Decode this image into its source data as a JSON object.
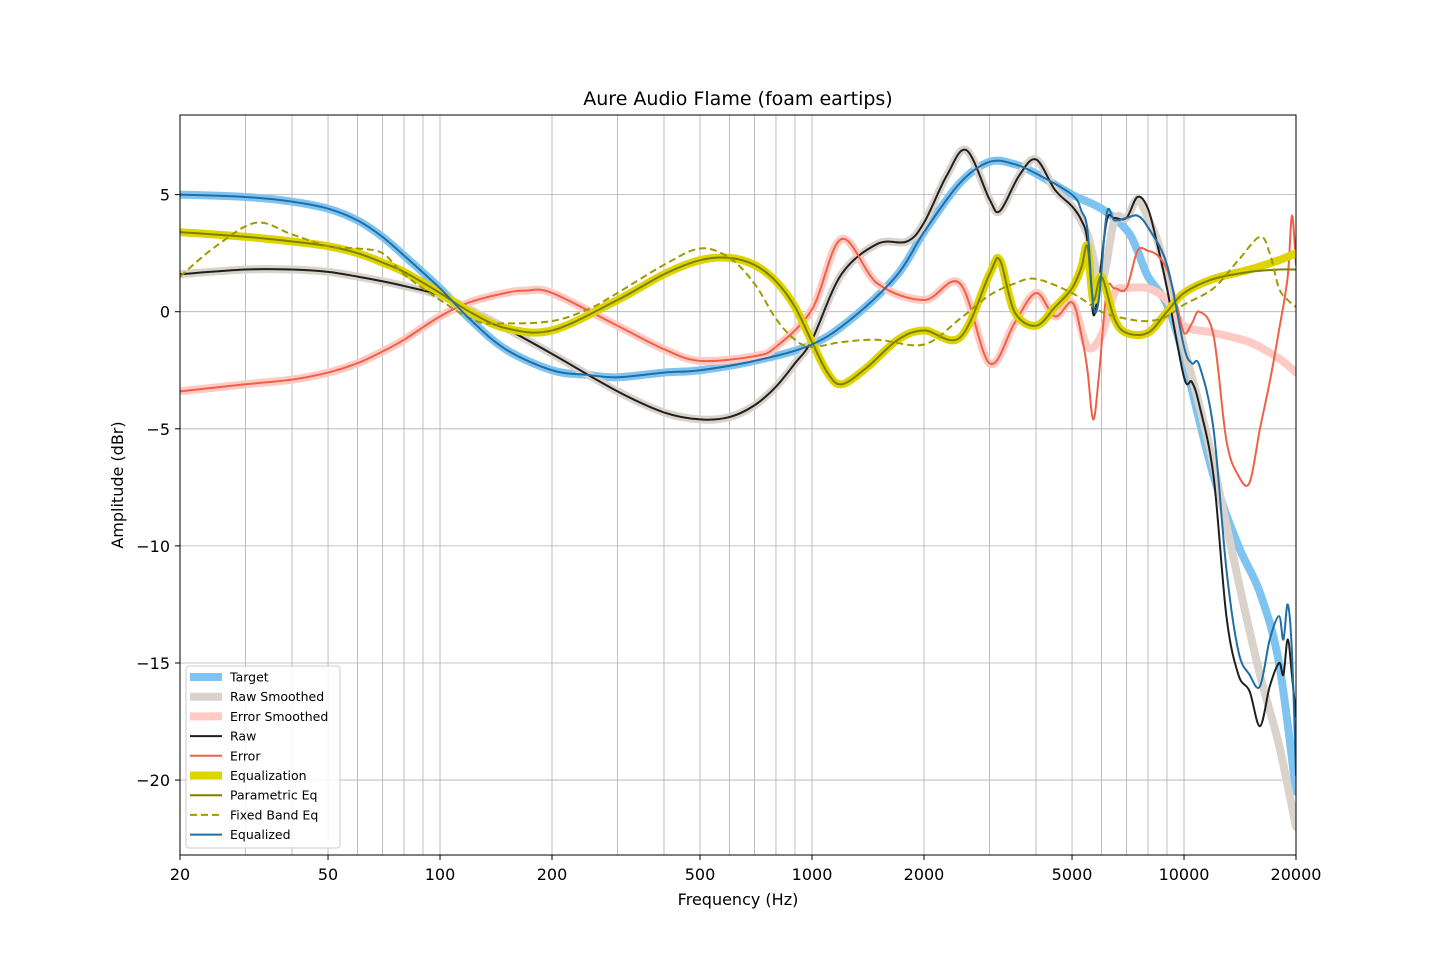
{
  "chart_data": {
    "type": "line",
    "title": "Aure Audio Flame (foam eartips)",
    "xlabel": "Frequency (Hz)",
    "ylabel": "Amplitude (dBr)",
    "xscale": "log",
    "xlim": [
      20,
      20000
    ],
    "ylim": [
      -23.2,
      8.4
    ],
    "grid": true,
    "legend_position": "lower-left",
    "x_ticks": [
      {
        "value": 20,
        "label": "20"
      },
      {
        "value": 50,
        "label": "50"
      },
      {
        "value": 100,
        "label": "100"
      },
      {
        "value": 200,
        "label": "200"
      },
      {
        "value": 500,
        "label": "500"
      },
      {
        "value": 1000,
        "label": "1000"
      },
      {
        "value": 2000,
        "label": "2000"
      },
      {
        "value": 5000,
        "label": "5000"
      },
      {
        "value": 10000,
        "label": "10000"
      },
      {
        "value": 20000,
        "label": "20000"
      }
    ],
    "y_ticks": [
      {
        "value": 5,
        "label": "5"
      },
      {
        "value": 0,
        "label": "0"
      },
      {
        "value": -5,
        "label": "−5"
      },
      {
        "value": -10,
        "label": "−10"
      },
      {
        "value": -15,
        "label": "−15"
      },
      {
        "value": -20,
        "label": "−20"
      }
    ],
    "series": [
      {
        "name": "Target",
        "color": "#7fc4f0",
        "style": "solid",
        "weight": "thick",
        "x": [
          20,
          30,
          40,
          50,
          60,
          70,
          80,
          100,
          120,
          150,
          200,
          250,
          300,
          400,
          500,
          700,
          1000,
          1300,
          1700,
          2000,
          2500,
          3000,
          3500,
          4000,
          5000,
          6000,
          7000,
          7500,
          8000,
          9000,
          10000,
          12000,
          14000,
          16000,
          18000,
          20000
        ],
        "y": [
          5.0,
          4.9,
          4.7,
          4.4,
          3.9,
          3.2,
          2.4,
          1.0,
          -0.3,
          -1.6,
          -2.5,
          -2.7,
          -2.8,
          -2.6,
          -2.5,
          -2.1,
          -1.4,
          -0.2,
          1.6,
          3.4,
          5.5,
          6.4,
          6.3,
          5.9,
          5.0,
          4.4,
          3.5,
          2.6,
          1.5,
          0.3,
          -2.0,
          -7.0,
          -10.0,
          -12.0,
          -15.0,
          -20.5
        ]
      },
      {
        "name": "Raw Smoothed",
        "color": "#d9d3cc",
        "style": "solid",
        "weight": "thick",
        "x": [
          20,
          30,
          40,
          50,
          60,
          70,
          80,
          100,
          120,
          150,
          200,
          300,
          400,
          500,
          600,
          700,
          800,
          900,
          1000,
          1200,
          1500,
          1800,
          2000,
          2300,
          2600,
          3000,
          3200,
          3600,
          4000,
          4500,
          5000,
          5500,
          6000,
          6500,
          7000,
          7500,
          8000,
          8500,
          9000,
          10000,
          11000,
          12000,
          14000,
          16000,
          18000,
          20000
        ],
        "y": [
          1.6,
          1.8,
          1.8,
          1.7,
          1.5,
          1.3,
          1.1,
          0.7,
          0.1,
          -0.7,
          -1.8,
          -3.4,
          -4.3,
          -4.6,
          -4.5,
          -4.0,
          -3.2,
          -2.2,
          -1.2,
          1.6,
          2.9,
          3.0,
          3.8,
          5.8,
          6.9,
          4.8,
          4.3,
          5.8,
          6.5,
          5.2,
          4.5,
          3.3,
          1.3,
          3.9,
          4.0,
          4.8,
          4.0,
          3.0,
          1.5,
          -1.5,
          -4.0,
          -6.5,
          -11.5,
          -15.5,
          -18.5,
          -22.0
        ]
      },
      {
        "name": "Error Smoothed",
        "color": "#ffcac3",
        "style": "solid",
        "weight": "thick",
        "x": [
          20,
          30,
          40,
          50,
          60,
          70,
          80,
          100,
          120,
          150,
          170,
          200,
          300,
          400,
          500,
          700,
          800,
          1000,
          1200,
          1500,
          2000,
          2500,
          3000,
          3500,
          4000,
          4500,
          5000,
          5500,
          6000,
          6500,
          7000,
          8000,
          9000,
          10000,
          12000,
          15000,
          18000,
          20000
        ],
        "y": [
          -3.4,
          -3.1,
          -2.9,
          -2.6,
          -2.2,
          -1.7,
          -1.2,
          -0.2,
          0.4,
          0.8,
          0.9,
          0.8,
          -0.6,
          -1.6,
          -2.1,
          -1.9,
          -1.5,
          0.1,
          3.1,
          1.2,
          0.5,
          1.2,
          -2.2,
          -0.5,
          0.8,
          -0.2,
          0.4,
          -1.5,
          -1.0,
          0.8,
          1.0,
          1.0,
          0.5,
          -0.6,
          -0.9,
          -1.3,
          -2.0,
          -2.6
        ]
      },
      {
        "name": "Raw",
        "color": "#1f1f1f",
        "style": "solid",
        "weight": "normal",
        "x": [
          20,
          30,
          40,
          50,
          60,
          70,
          80,
          100,
          120,
          150,
          200,
          300,
          400,
          500,
          600,
          700,
          800,
          900,
          1000,
          1200,
          1500,
          1800,
          2000,
          2300,
          2600,
          3000,
          3200,
          3600,
          4000,
          4500,
          5000,
          5300,
          5500,
          5700,
          5900,
          6200,
          6500,
          7000,
          7500,
          8000,
          8500,
          9000,
          10000,
          10500,
          11000,
          12000,
          13000,
          14000,
          15000,
          16000,
          17000,
          18000,
          18500,
          19000,
          19500,
          20000
        ],
        "y": [
          1.6,
          1.8,
          1.8,
          1.7,
          1.5,
          1.3,
          1.1,
          0.7,
          0.1,
          -0.7,
          -1.8,
          -3.4,
          -4.3,
          -4.6,
          -4.5,
          -4.0,
          -3.2,
          -2.2,
          -1.2,
          1.6,
          2.9,
          3.0,
          3.8,
          5.8,
          6.9,
          4.8,
          4.3,
          5.8,
          6.5,
          5.2,
          4.5,
          3.9,
          3.0,
          -0.1,
          1.2,
          3.9,
          4.0,
          4.0,
          4.9,
          4.4,
          2.8,
          1.0,
          -2.8,
          -3.0,
          -4.0,
          -7.0,
          -13.0,
          -15.5,
          -16.2,
          -17.7,
          -16.0,
          -15.0,
          -15.5,
          -14.0,
          -15.5,
          -17.3
        ]
      },
      {
        "name": "Error",
        "color": "#f06048",
        "style": "solid",
        "weight": "normal",
        "x": [
          20,
          30,
          40,
          50,
          60,
          70,
          80,
          100,
          120,
          150,
          170,
          200,
          300,
          400,
          500,
          700,
          800,
          1000,
          1200,
          1500,
          2000,
          2500,
          3000,
          3500,
          4000,
          4500,
          5000,
          5300,
          5500,
          5700,
          5900,
          6200,
          6500,
          7000,
          7500,
          8000,
          8500,
          9000,
          9500,
          10000,
          10500,
          11000,
          12000,
          13000,
          14000,
          15000,
          16000,
          17000,
          18000,
          19000,
          19500,
          20000
        ],
        "y": [
          -3.4,
          -3.1,
          -2.9,
          -2.6,
          -2.2,
          -1.7,
          -1.2,
          -0.2,
          0.4,
          0.8,
          0.9,
          0.8,
          -0.6,
          -1.6,
          -2.1,
          -1.9,
          -1.5,
          0.1,
          3.1,
          1.2,
          0.5,
          1.2,
          -2.2,
          -0.5,
          0.8,
          -0.2,
          0.4,
          -1.0,
          -2.5,
          -4.6,
          -2.8,
          0.9,
          1.0,
          1.0,
          2.6,
          2.6,
          2.4,
          1.8,
          0.5,
          -0.9,
          -0.5,
          0.0,
          -1.0,
          -5.5,
          -7.0,
          -7.3,
          -5.0,
          -3.0,
          -0.8,
          1.5,
          4.1,
          2.0
        ]
      },
      {
        "name": "Equalization",
        "color": "#ddd400",
        "style": "solid",
        "weight": "thick",
        "x": [
          20,
          30,
          40,
          50,
          60,
          70,
          80,
          100,
          120,
          150,
          200,
          300,
          400,
          500,
          600,
          700,
          800,
          900,
          1000,
          1100,
          1200,
          1400,
          1700,
          2000,
          2500,
          3000,
          3200,
          3500,
          4000,
          4500,
          5000,
          5300,
          5500,
          5700,
          6000,
          6500,
          7000,
          8000,
          9000,
          10000,
          12000,
          15000,
          18000,
          20000
        ],
        "y": [
          3.4,
          3.2,
          3.0,
          2.8,
          2.5,
          2.1,
          1.7,
          0.8,
          0.0,
          -0.7,
          -0.8,
          0.5,
          1.6,
          2.2,
          2.3,
          2.0,
          1.3,
          0.2,
          -1.3,
          -2.6,
          -3.1,
          -2.4,
          -1.2,
          -0.8,
          -1.1,
          1.6,
          2.2,
          0.0,
          -0.6,
          0.2,
          1.0,
          1.9,
          2.8,
          0.5,
          1.5,
          -0.3,
          -0.9,
          -0.9,
          0.0,
          0.8,
          1.4,
          1.8,
          2.2,
          2.5
        ]
      },
      {
        "name": "Parametric Eq",
        "color": "#7f7f00",
        "style": "solid",
        "weight": "normal",
        "x": [
          20,
          30,
          40,
          50,
          60,
          70,
          80,
          100,
          120,
          150,
          200,
          300,
          400,
          500,
          600,
          700,
          800,
          900,
          1000,
          1100,
          1200,
          1400,
          1700,
          2000,
          2500,
          3000,
          3200,
          3500,
          4000,
          4500,
          5000,
          5300,
          5500,
          5700,
          6000,
          6500,
          7000,
          8000,
          9000,
          10000,
          12000,
          15000,
          18000,
          20000
        ],
        "y": [
          3.4,
          3.2,
          3.0,
          2.8,
          2.5,
          2.1,
          1.7,
          0.8,
          0.0,
          -0.7,
          -0.8,
          0.5,
          1.6,
          2.2,
          2.3,
          2.0,
          1.3,
          0.2,
          -1.3,
          -2.6,
          -3.1,
          -2.4,
          -1.2,
          -0.8,
          -1.1,
          1.6,
          2.2,
          0.0,
          -0.6,
          0.2,
          1.0,
          1.9,
          2.8,
          0.5,
          1.5,
          -0.3,
          -0.9,
          -0.9,
          0.0,
          0.8,
          1.4,
          1.7,
          1.8,
          1.8
        ]
      },
      {
        "name": "Fixed Band Eq",
        "color": "#a09a00",
        "style": "dashed",
        "weight": "normal",
        "x": [
          20,
          25,
          32,
          40,
          50,
          60,
          70,
          80,
          100,
          125,
          150,
          200,
          250,
          300,
          400,
          500,
          600,
          700,
          800,
          900,
          1000,
          1200,
          1500,
          2000,
          2500,
          3000,
          3500,
          4000,
          5000,
          6000,
          7000,
          8000,
          9000,
          10000,
          12000,
          14000,
          16000,
          17000,
          18000,
          19000,
          20000
        ],
        "y": [
          1.5,
          2.8,
          3.8,
          3.3,
          2.8,
          2.7,
          2.5,
          1.6,
          0.5,
          -0.4,
          -0.5,
          -0.4,
          0.1,
          0.8,
          2.0,
          2.7,
          2.3,
          1.2,
          -0.3,
          -1.2,
          -1.5,
          -1.3,
          -1.2,
          -1.4,
          -0.3,
          0.7,
          1.2,
          1.4,
          0.8,
          0.0,
          -0.3,
          -0.4,
          -0.2,
          0.3,
          1.0,
          2.2,
          3.2,
          2.5,
          1.0,
          0.5,
          0.2
        ]
      },
      {
        "name": "Equalized",
        "color": "#1f6ea6",
        "style": "solid",
        "weight": "normal",
        "x": [
          20,
          30,
          40,
          50,
          60,
          70,
          80,
          100,
          120,
          150,
          200,
          250,
          300,
          400,
          500,
          700,
          1000,
          1300,
          1700,
          2000,
          2500,
          3000,
          3500,
          4000,
          5000,
          5300,
          5500,
          5700,
          5900,
          6200,
          6500,
          7000,
          7500,
          8000,
          9000,
          10000,
          10500,
          11000,
          12000,
          13000,
          14000,
          15000,
          16000,
          17000,
          18000,
          18500,
          19000,
          19500,
          20000
        ],
        "y": [
          5.0,
          4.9,
          4.7,
          4.4,
          3.9,
          3.2,
          2.4,
          1.0,
          -0.3,
          -1.6,
          -2.5,
          -2.7,
          -2.8,
          -2.6,
          -2.5,
          -2.1,
          -1.4,
          -0.2,
          1.6,
          3.4,
          5.5,
          6.4,
          6.3,
          5.9,
          5.0,
          4.3,
          3.5,
          0.3,
          0.5,
          4.2,
          3.9,
          4.0,
          4.1,
          3.6,
          2.0,
          -1.5,
          -2.2,
          -2.3,
          -5.0,
          -11.0,
          -14.5,
          -15.5,
          -16.0,
          -14.0,
          -13.0,
          -14.0,
          -12.5,
          -14.5,
          -19.8
        ]
      }
    ]
  }
}
